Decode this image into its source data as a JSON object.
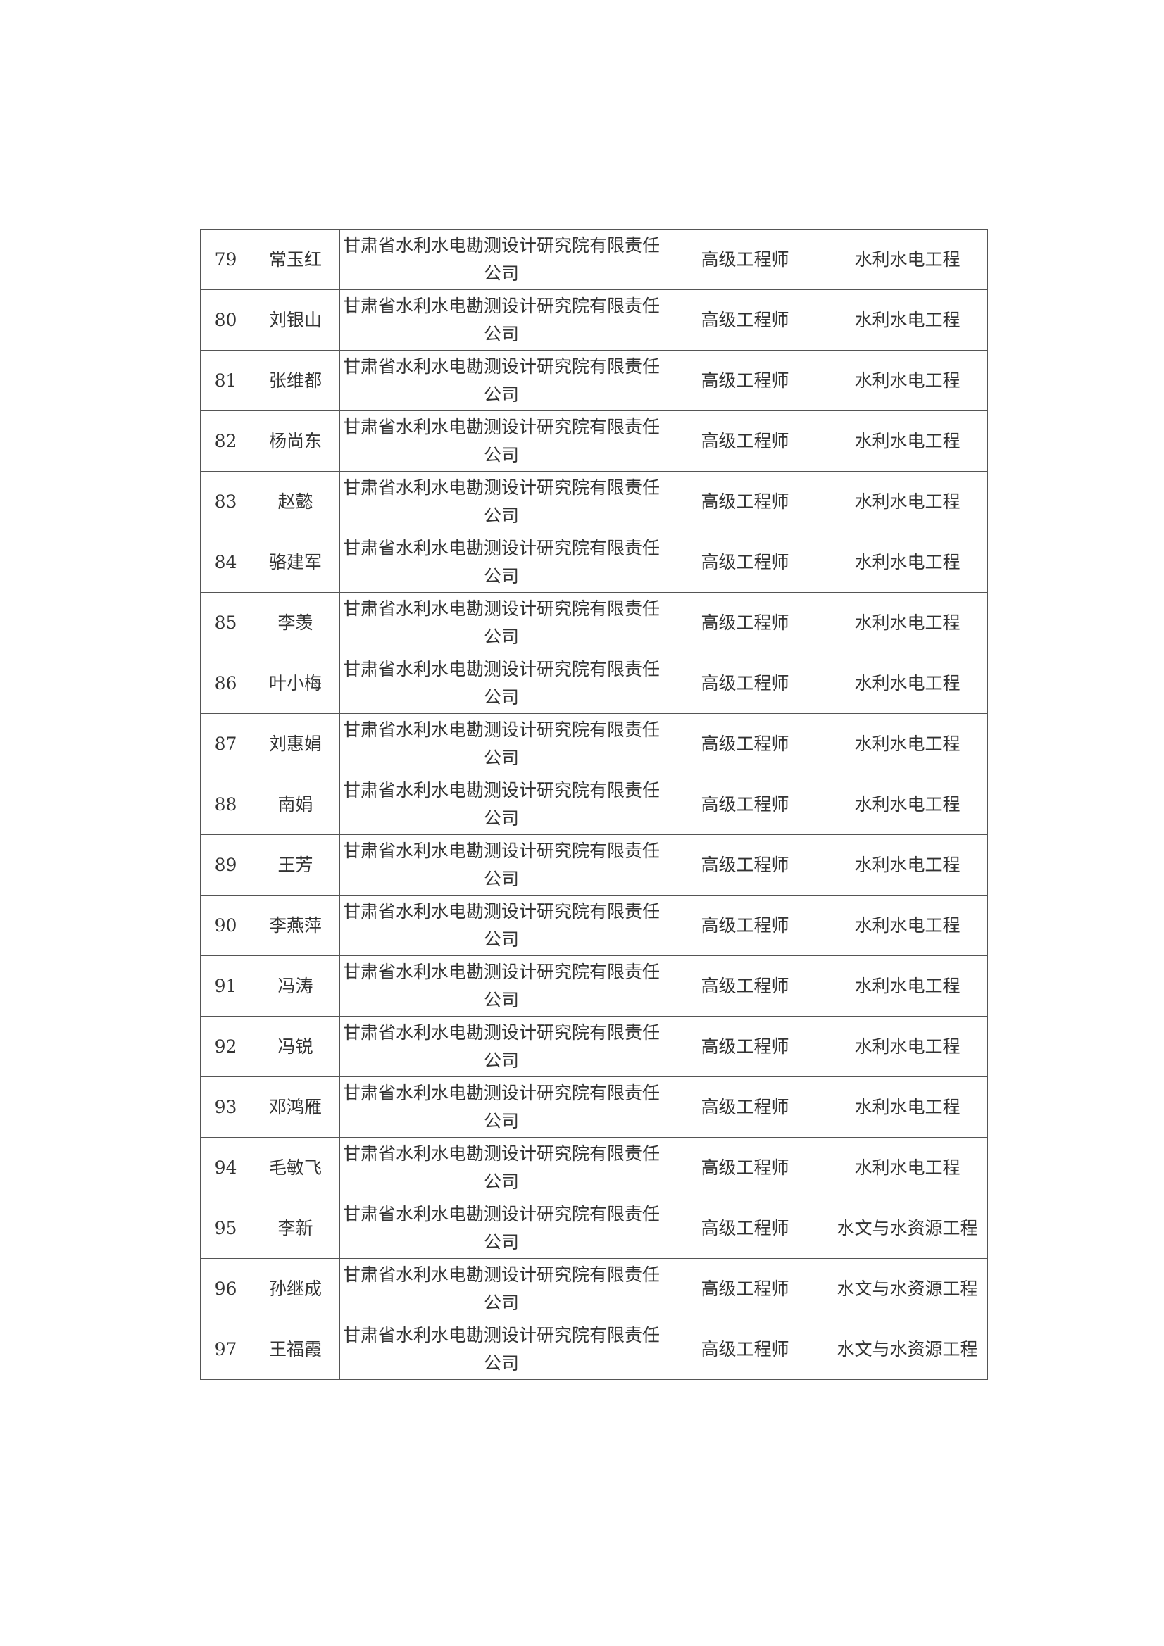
{
  "table": {
    "rows": [
      {
        "no": "79",
        "name": "常玉红",
        "unit": "甘肃省水利水电勘测设计研究院有限责任公司",
        "title": "高级工程师",
        "major": "水利水电工程"
      },
      {
        "no": "80",
        "name": "刘银山",
        "unit": "甘肃省水利水电勘测设计研究院有限责任公司",
        "title": "高级工程师",
        "major": "水利水电工程"
      },
      {
        "no": "81",
        "name": "张维都",
        "unit": "甘肃省水利水电勘测设计研究院有限责任公司",
        "title": "高级工程师",
        "major": "水利水电工程"
      },
      {
        "no": "82",
        "name": "杨尚东",
        "unit": "甘肃省水利水电勘测设计研究院有限责任公司",
        "title": "高级工程师",
        "major": "水利水电工程"
      },
      {
        "no": "83",
        "name": "赵懿",
        "unit": "甘肃省水利水电勘测设计研究院有限责任公司",
        "title": "高级工程师",
        "major": "水利水电工程"
      },
      {
        "no": "84",
        "name": "骆建军",
        "unit": "甘肃省水利水电勘测设计研究院有限责任公司",
        "title": "高级工程师",
        "major": "水利水电工程"
      },
      {
        "no": "85",
        "name": "李羡",
        "unit": "甘肃省水利水电勘测设计研究院有限责任公司",
        "title": "高级工程师",
        "major": "水利水电工程"
      },
      {
        "no": "86",
        "name": "叶小梅",
        "unit": "甘肃省水利水电勘测设计研究院有限责任公司",
        "title": "高级工程师",
        "major": "水利水电工程"
      },
      {
        "no": "87",
        "name": "刘惠娟",
        "unit": "甘肃省水利水电勘测设计研究院有限责任公司",
        "title": "高级工程师",
        "major": "水利水电工程"
      },
      {
        "no": "88",
        "name": "南娟",
        "unit": "甘肃省水利水电勘测设计研究院有限责任公司",
        "title": "高级工程师",
        "major": "水利水电工程"
      },
      {
        "no": "89",
        "name": "王芳",
        "unit": "甘肃省水利水电勘测设计研究院有限责任公司",
        "title": "高级工程师",
        "major": "水利水电工程"
      },
      {
        "no": "90",
        "name": "李燕萍",
        "unit": "甘肃省水利水电勘测设计研究院有限责任公司",
        "title": "高级工程师",
        "major": "水利水电工程"
      },
      {
        "no": "91",
        "name": "冯涛",
        "unit": "甘肃省水利水电勘测设计研究院有限责任公司",
        "title": "高级工程师",
        "major": "水利水电工程"
      },
      {
        "no": "92",
        "name": "冯锐",
        "unit": "甘肃省水利水电勘测设计研究院有限责任公司",
        "title": "高级工程师",
        "major": "水利水电工程"
      },
      {
        "no": "93",
        "name": "邓鸿雁",
        "unit": "甘肃省水利水电勘测设计研究院有限责任公司",
        "title": "高级工程师",
        "major": "水利水电工程"
      },
      {
        "no": "94",
        "name": "毛敏飞",
        "unit": "甘肃省水利水电勘测设计研究院有限责任公司",
        "title": "高级工程师",
        "major": "水利水电工程"
      },
      {
        "no": "95",
        "name": "李新",
        "unit": "甘肃省水利水电勘测设计研究院有限责任公司",
        "title": "高级工程师",
        "major": "水文与水资源工程"
      },
      {
        "no": "96",
        "name": "孙继成",
        "unit": "甘肃省水利水电勘测设计研究院有限责任公司",
        "title": "高级工程师",
        "major": "水文与水资源工程"
      },
      {
        "no": "97",
        "name": "王福霞",
        "unit": "甘肃省水利水电勘测设计研究院有限责任公司",
        "title": "高级工程师",
        "major": "水文与水资源工程"
      }
    ]
  }
}
